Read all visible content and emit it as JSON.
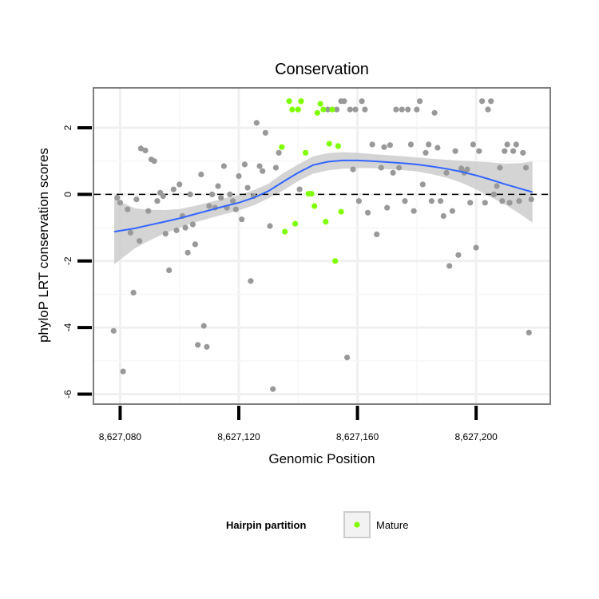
{
  "chart_data": {
    "type": "scatter",
    "title": "Conservation",
    "xlabel": "Genomic Position",
    "ylabel": "phyloP LRT conservation scores",
    "xlim": [
      8627071,
      8627225
    ],
    "ylim": [
      -6.3,
      3.2
    ],
    "x_ticks": [
      8627080,
      8627120,
      8627160,
      8627200
    ],
    "x_tick_labels": [
      "8,627,080",
      "8,627,120",
      "8,627,160",
      "8,627,200"
    ],
    "y_ticks": [
      -6,
      -4,
      -2,
      0,
      2
    ],
    "y_tick_labels": [
      "-6",
      "-4",
      "-2",
      "0",
      "2"
    ],
    "reference_line": 0,
    "grid": true,
    "colors": {
      "other": "#999999",
      "mature": "#7fff00",
      "smooth": "#3366ff",
      "band": "#cccccc"
    },
    "legend": {
      "title": "Hairpin partition",
      "position": "bottom",
      "entries": [
        "Mature"
      ]
    },
    "series": [
      {
        "color": "#999999",
        "points": [
          [
            8627077.8,
            -4.1
          ],
          [
            8627079,
            -0.1
          ],
          [
            8627080,
            -0.25
          ],
          [
            8627081,
            -5.32
          ],
          [
            8627082.5,
            -0.45
          ],
          [
            8627083.5,
            -1.15
          ],
          [
            8627084.5,
            -2.95
          ],
          [
            8627085.5,
            -0.15
          ],
          [
            8627086.5,
            -1.4
          ],
          [
            8627087,
            1.38
          ],
          [
            8627088.5,
            1.32
          ],
          [
            8627089.5,
            -0.5
          ],
          [
            8627090.5,
            1.05
          ],
          [
            8627091.5,
            1.0
          ],
          [
            8627092.5,
            -0.2
          ],
          [
            8627093.5,
            0.05
          ],
          [
            8627094.5,
            -0.05
          ],
          [
            8627095.3,
            -1.18
          ],
          [
            8627096.5,
            -2.28
          ],
          [
            8627098,
            0.15
          ],
          [
            8627099,
            -1.08
          ],
          [
            8627100,
            0.3
          ],
          [
            8627101,
            -0.65
          ],
          [
            8627102,
            -1.0
          ],
          [
            8627102.8,
            -1.75
          ],
          [
            8627103.6,
            0.0
          ],
          [
            8627104.5,
            -0.9
          ],
          [
            8627105.3,
            -1.5
          ],
          [
            8627106.2,
            -4.52
          ],
          [
            8627107.3,
            0.6
          ],
          [
            8627108.2,
            -3.95
          ],
          [
            8627109.2,
            -4.58
          ],
          [
            8627110,
            -0.35
          ],
          [
            8627111,
            0.0
          ],
          [
            8627112,
            -0.4
          ],
          [
            8627113,
            0.25
          ],
          [
            8627114,
            -0.1
          ],
          [
            8627115,
            0.85
          ],
          [
            8627116,
            -0.4
          ],
          [
            8627117,
            0.0
          ],
          [
            8627118,
            -0.2
          ],
          [
            8627119,
            -0.45
          ],
          [
            8627120,
            0.55
          ],
          [
            8627121,
            -0.75
          ],
          [
            8627122,
            0.9
          ],
          [
            8627123,
            0.2
          ],
          [
            8627124,
            -2.6
          ],
          [
            8627125,
            -0.05
          ],
          [
            8627126,
            2.15
          ],
          [
            8627127,
            0.85
          ],
          [
            8627128,
            0.7
          ],
          [
            8627129,
            1.85
          ],
          [
            8627130.5,
            -0.95
          ],
          [
            8627131.5,
            -5.85
          ],
          [
            8627132.5,
            0.8
          ],
          [
            8627133.5,
            1.25
          ],
          [
            8627140.5,
            0.15
          ],
          [
            8627150,
            2.55
          ],
          [
            8627153,
            2.55
          ],
          [
            8627154.5,
            2.8
          ],
          [
            8627155.5,
            2.8
          ],
          [
            8627156.5,
            -4.9
          ],
          [
            8627157.5,
            2.55
          ],
          [
            8627158.5,
            0.75
          ],
          [
            8627159.3,
            2.55
          ],
          [
            8627160.5,
            -0.2
          ],
          [
            8627161.5,
            2.8
          ],
          [
            8627162.5,
            2.55
          ],
          [
            8627163.5,
            -0.55
          ],
          [
            8627165,
            1.5
          ],
          [
            8627166.5,
            -1.2
          ],
          [
            8627168,
            0.8
          ],
          [
            8627169,
            1.42
          ],
          [
            8627170,
            -0.4
          ],
          [
            8627171,
            1.48
          ],
          [
            8627172,
            0.65
          ],
          [
            8627173,
            2.55
          ],
          [
            8627174,
            0.8
          ],
          [
            8627175,
            2.55
          ],
          [
            8627176,
            -0.2
          ],
          [
            8627177,
            2.55
          ],
          [
            8627178,
            1.5
          ],
          [
            8627179,
            -0.5
          ],
          [
            8627180,
            2.55
          ],
          [
            8627181,
            2.8
          ],
          [
            8627182,
            0.3
          ],
          [
            8627183,
            1.25
          ],
          [
            8627184,
            1.5
          ],
          [
            8627185,
            -0.2
          ],
          [
            8627186,
            2.45
          ],
          [
            8627187,
            1.4
          ],
          [
            8627188,
            -0.2
          ],
          [
            8627189,
            -0.65
          ],
          [
            8627190,
            0.65
          ],
          [
            8627191,
            -2.15
          ],
          [
            8627192,
            -0.5
          ],
          [
            8627193,
            1.3
          ],
          [
            8627194,
            -1.82
          ],
          [
            8627195,
            0.78
          ],
          [
            8627196,
            0.65
          ],
          [
            8627197,
            0.75
          ],
          [
            8627198,
            -0.25
          ],
          [
            8627199,
            1.5
          ],
          [
            8627200,
            -1.6
          ],
          [
            8627201,
            1.3
          ],
          [
            8627202,
            2.8
          ],
          [
            8627203,
            -0.25
          ],
          [
            8627204,
            2.55
          ],
          [
            8627205,
            2.8
          ],
          [
            8627206,
            0.0
          ],
          [
            8627207,
            0.25
          ],
          [
            8627208,
            0.8
          ],
          [
            8627208.8,
            -0.2
          ],
          [
            8627209.6,
            1.3
          ],
          [
            8627210.5,
            1.5
          ],
          [
            8627211.3,
            -0.25
          ],
          [
            8627212.5,
            1.3
          ],
          [
            8627213.5,
            1.5
          ],
          [
            8627214.5,
            -0.2
          ],
          [
            8627215.8,
            1.25
          ],
          [
            8627216.8,
            0.8
          ],
          [
            8627217.8,
            -4.15
          ],
          [
            8627218.6,
            -0.15
          ]
        ]
      },
      {
        "name": "Mature",
        "color": "#7fff00",
        "points": [
          [
            8627134.5,
            1.42
          ],
          [
            8627135.5,
            -1.12
          ],
          [
            8627137,
            2.8
          ],
          [
            8627138,
            2.55
          ],
          [
            8627139,
            -0.88
          ],
          [
            8627140,
            2.55
          ],
          [
            8627141,
            2.8
          ],
          [
            8627142.5,
            1.25
          ],
          [
            8627143.5,
            0.02
          ],
          [
            8627144.5,
            0.02
          ],
          [
            8627145.5,
            -0.35
          ],
          [
            8627146.5,
            2.45
          ],
          [
            8627147.5,
            2.72
          ],
          [
            8627148.5,
            2.55
          ],
          [
            8627149.3,
            -0.82
          ],
          [
            8627150.5,
            1.52
          ],
          [
            8627151.5,
            2.55
          ],
          [
            8627152.5,
            -2.0
          ],
          [
            8627153.5,
            1.45
          ],
          [
            8627154.5,
            -0.52
          ]
        ]
      }
    ],
    "smooth": {
      "x": [
        8627078,
        8627085,
        8627090,
        8627095,
        8627100,
        8627105,
        8627110,
        8627115,
        8627120,
        8627125,
        8627130,
        8627135,
        8627140,
        8627145,
        8627150,
        8627155,
        8627160,
        8627165,
        8627170,
        8627175,
        8627180,
        8627185,
        8627190,
        8627195,
        8627200,
        8627205,
        8627210,
        8627215,
        8627219
      ],
      "y": [
        -1.12,
        -1.02,
        -0.92,
        -0.82,
        -0.72,
        -0.6,
        -0.48,
        -0.36,
        -0.25,
        -0.1,
        0.1,
        0.38,
        0.65,
        0.88,
        0.98,
        1.02,
        1.02,
        1.0,
        0.97,
        0.94,
        0.9,
        0.84,
        0.77,
        0.68,
        0.57,
        0.44,
        0.3,
        0.17,
        0.07
      ],
      "lower": [
        -2.1,
        -1.62,
        -1.38,
        -1.17,
        -1.0,
        -0.85,
        -0.72,
        -0.6,
        -0.48,
        -0.33,
        -0.12,
        0.12,
        0.4,
        0.62,
        0.72,
        0.77,
        0.79,
        0.79,
        0.76,
        0.73,
        0.69,
        0.61,
        0.5,
        0.35,
        0.15,
        -0.08,
        -0.32,
        -0.6,
        -0.85
      ],
      "upper": [
        -0.14,
        -0.42,
        -0.46,
        -0.47,
        -0.44,
        -0.35,
        -0.24,
        -0.12,
        -0.02,
        0.13,
        0.32,
        0.64,
        0.9,
        1.14,
        1.24,
        1.27,
        1.25,
        1.21,
        1.18,
        1.15,
        1.11,
        1.07,
        1.04,
        1.01,
        0.99,
        0.96,
        0.92,
        0.94,
        0.99
      ]
    }
  }
}
